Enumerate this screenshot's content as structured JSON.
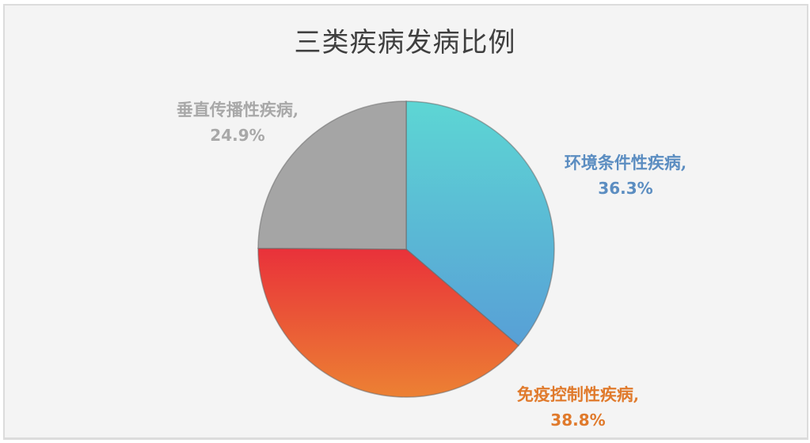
{
  "chart_data": {
    "type": "pie",
    "title": "三类疾病发病比例",
    "categories": [
      "环境条件性疾病",
      "免疫控制性疾病",
      "垂直传播性疾病"
    ],
    "values": [
      36.3,
      38.8,
      24.9
    ],
    "unit": "%",
    "series": [
      {
        "name": "环境条件性疾病",
        "value": 36.3,
        "label": "36.3%",
        "color_top": "#5dd6d4",
        "color_bottom": "#589fd6",
        "label_color": "#5b8dc1"
      },
      {
        "name": "免疫控制性疾病",
        "value": 38.8,
        "label": "38.8%",
        "color_top": "#e9313a",
        "color_bottom": "#ec8133",
        "label_color": "#e07a2c"
      },
      {
        "name": "垂直传播性疾病",
        "value": 24.9,
        "label": "24.9%",
        "color_top": "#a5a5a5",
        "color_bottom": "#a5a5a5",
        "label_color": "#a8a8a8"
      }
    ],
    "start_angle_deg": 0,
    "direction": "clockwise",
    "legend": "none",
    "data_labels": "outside, category name + percentage"
  },
  "labels": [
    {
      "name": "环境条件性疾病,",
      "pct": "36.3%"
    },
    {
      "name": "免疫控制性疾病,",
      "pct": "38.8%"
    },
    {
      "name": "垂直传播性疾病,",
      "pct": "24.9%"
    }
  ]
}
